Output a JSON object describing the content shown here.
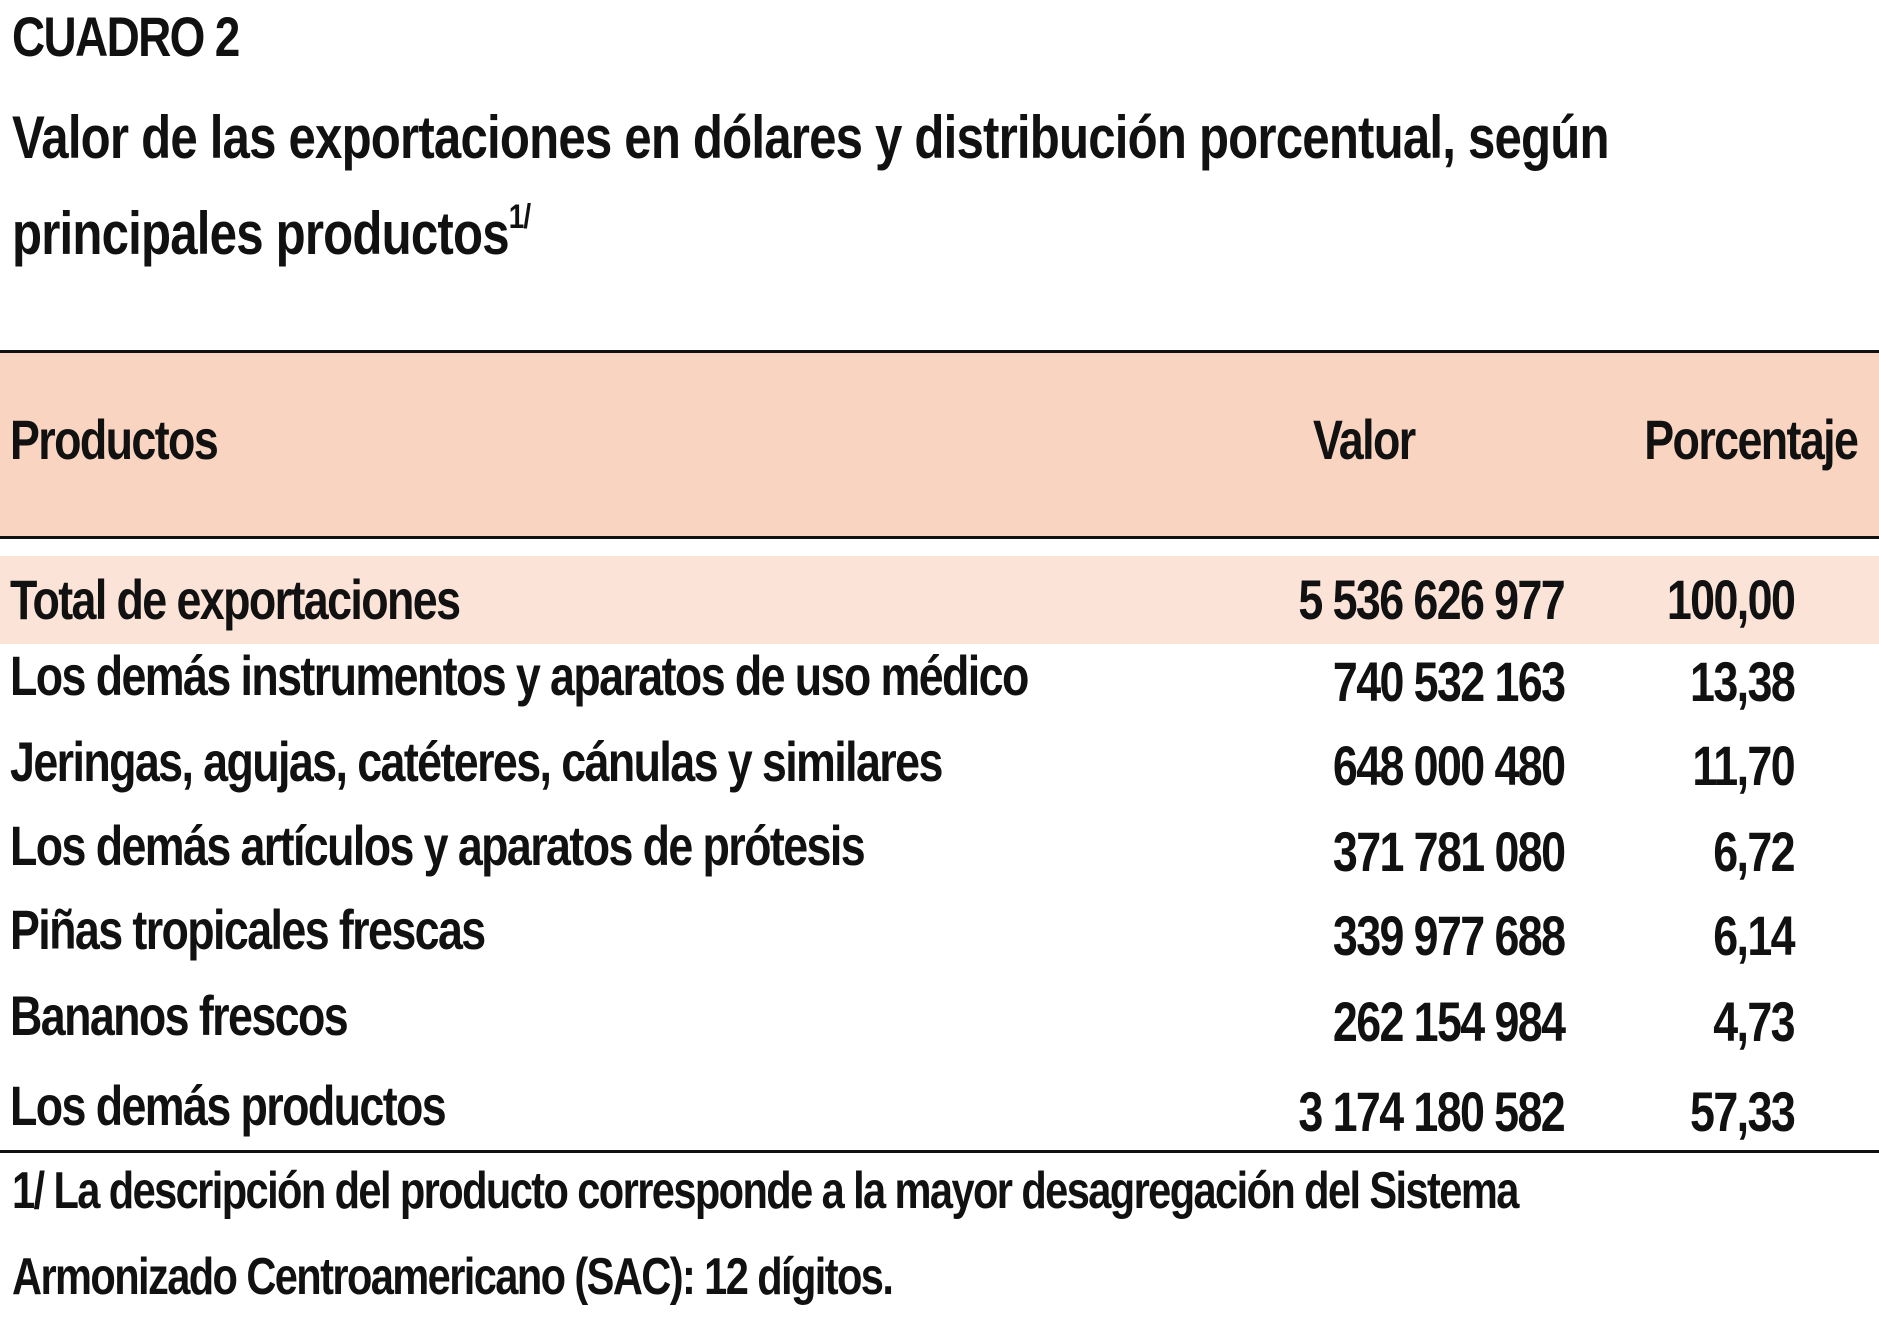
{
  "header": {
    "label": "CUADRO 2",
    "title": "Valor de las exportaciones en dólares y distribución porcentual, según principales productos",
    "title_footnote_marker": "1/"
  },
  "table": {
    "columns": [
      "Productos",
      "Valor",
      "Porcentaje"
    ],
    "total": {
      "product": "Total de exportaciones",
      "value": "5 536 626 977",
      "percent": "100,00"
    },
    "rows": [
      {
        "product": "Los demás instrumentos y aparatos de uso médico",
        "value": "740 532 163",
        "percent": "13,38"
      },
      {
        "product": "Jeringas, agujas, catéteres, cánulas y similares",
        "value": "648 000 480",
        "percent": "11,70"
      },
      {
        "product": "Los demás artículos y aparatos de prótesis",
        "value": "371 781 080",
        "percent": "6,72"
      },
      {
        "product": "Piñas tropicales frescas",
        "value": "339 977 688",
        "percent": "6,14"
      },
      {
        "product": "Bananos frescos",
        "value": "262 154 984",
        "percent": "4,73"
      },
      {
        "product": "Los demás productos",
        "value": "3 174 180 582",
        "percent": "57,33"
      }
    ]
  },
  "footnote": "1/ La descripción del producto corresponde a la mayor desagregación del Sistema Armonizado Centroamericano (SAC): 12 dígitos.",
  "colors": {
    "header_band": "#f9d4c0",
    "total_band": "#fbe3d8",
    "text": "#111111"
  }
}
